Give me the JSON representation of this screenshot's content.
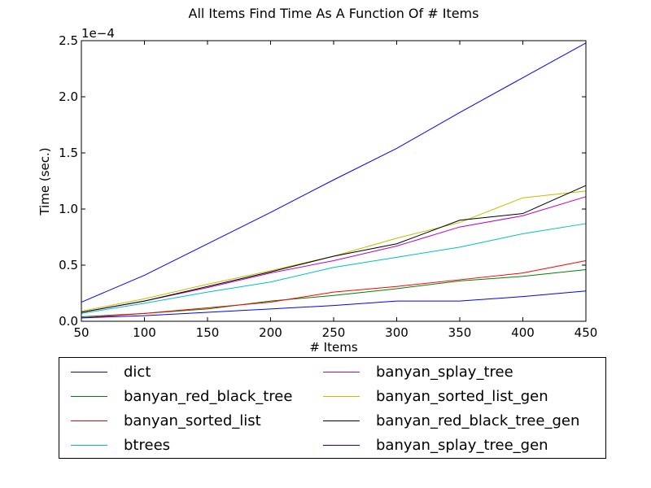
{
  "chart_data": {
    "type": "line",
    "title": "All Items Find Time As A Function Of # Items",
    "xlabel": "# Items",
    "ylabel": "Time (sec.)",
    "y_offset_label": "1e−4",
    "xlim": [
      50,
      450
    ],
    "ylim": [
      0,
      2.5
    ],
    "x_ticks": [
      "50",
      "100",
      "150",
      "200",
      "250",
      "300",
      "350",
      "400",
      "450"
    ],
    "y_ticks": [
      "0.0",
      "0.5",
      "1.0",
      "1.5",
      "2.0",
      "2.5"
    ],
    "grid": false,
    "legend_placement": "below",
    "x": [
      50,
      100,
      150,
      200,
      250,
      300,
      350,
      400,
      450
    ],
    "series": [
      {
        "name": "dict",
        "color": "#0000ff",
        "values": [
          0.17,
          0.41,
          0.69,
          0.97,
          1.26,
          1.54,
          1.86,
          2.17,
          2.48
        ]
      },
      {
        "name": "banyan_red_black_tree",
        "color": "#008000",
        "values": [
          0.04,
          0.07,
          0.11,
          0.18,
          0.23,
          0.29,
          0.36,
          0.4,
          0.46
        ]
      },
      {
        "name": "banyan_sorted_list",
        "color": "#ff0000",
        "values": [
          0.03,
          0.07,
          0.12,
          0.17,
          0.26,
          0.31,
          0.37,
          0.43,
          0.54
        ]
      },
      {
        "name": "btrees",
        "color": "#00bfbf",
        "values": [
          0.07,
          0.16,
          0.26,
          0.35,
          0.48,
          0.57,
          0.66,
          0.78,
          0.87
        ]
      },
      {
        "name": "banyan_splay_tree",
        "color": "#bf00bf",
        "values": [
          0.08,
          0.18,
          0.3,
          0.43,
          0.54,
          0.67,
          0.84,
          0.94,
          1.11
        ]
      },
      {
        "name": "banyan_sorted_list_gen",
        "color": "#bfbf00",
        "values": [
          0.09,
          0.2,
          0.33,
          0.45,
          0.58,
          0.74,
          0.88,
          1.1,
          1.16
        ]
      },
      {
        "name": "banyan_red_black_tree_gen",
        "color": "#000000",
        "values": [
          0.08,
          0.18,
          0.31,
          0.44,
          0.58,
          0.69,
          0.9,
          0.96,
          1.21
        ]
      },
      {
        "name": "banyan_splay_tree_gen",
        "color": "#0000ff",
        "values": [
          0.03,
          0.05,
          0.08,
          0.11,
          0.14,
          0.18,
          0.18,
          0.22,
          0.27
        ]
      }
    ]
  }
}
